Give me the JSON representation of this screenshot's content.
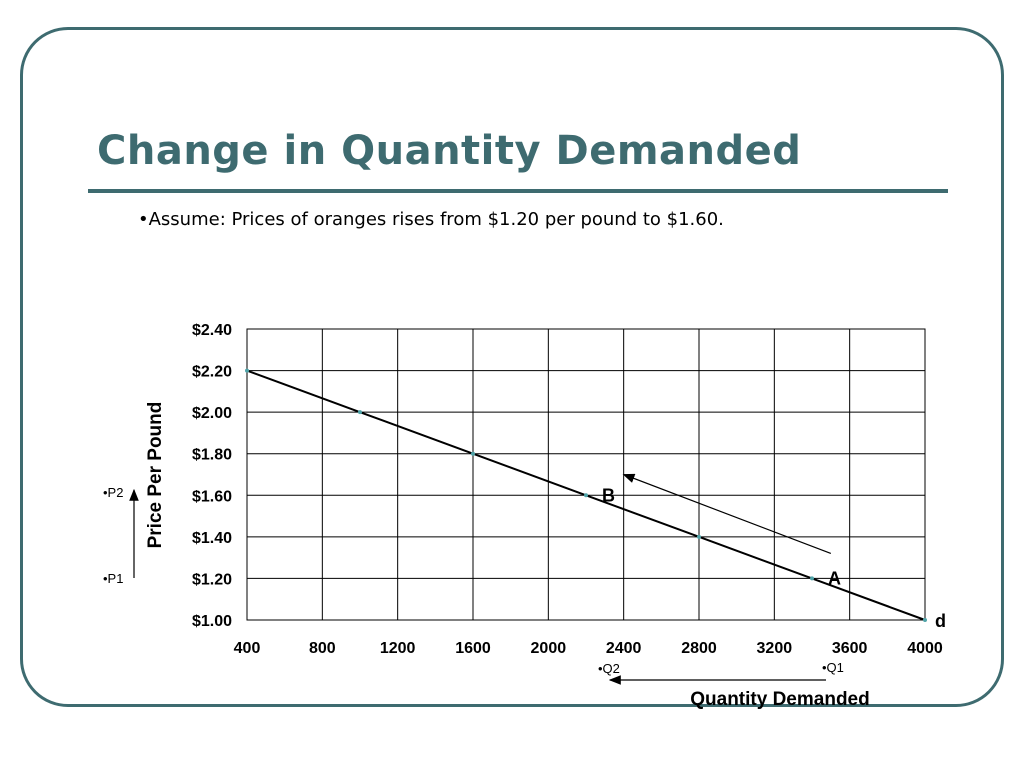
{
  "slide": {
    "title": "Change in Quantity Demanded",
    "subtitle": "•Assume: Prices of oranges rises from $1.20 per pound to $1.60."
  },
  "colors": {
    "accent": "#3e6b70",
    "line": "#000000",
    "point": "#4fa3a8"
  },
  "chart_data": {
    "type": "line",
    "title": "",
    "xlabel": "Quantity Demanded",
    "ylabel": "Price Per Pound",
    "x_ticks": [
      400,
      800,
      1200,
      1600,
      2000,
      2400,
      2800,
      3200,
      3600,
      4000
    ],
    "x_tick_labels": [
      "400",
      "800",
      "1200",
      "1600",
      "2000",
      "2400",
      "2800",
      "3200",
      "3600",
      "4000"
    ],
    "y_ticks": [
      1.0,
      1.2,
      1.4,
      1.6,
      1.8,
      2.0,
      2.2,
      2.4
    ],
    "y_tick_labels": [
      "$1.00",
      "$1.20",
      "$1.40",
      "$1.60",
      "$1.80",
      "$2.00",
      "$2.20",
      "$2.40"
    ],
    "xlim": [
      400,
      4000
    ],
    "ylim": [
      1.0,
      2.4
    ],
    "grid": true,
    "series": [
      {
        "name": "",
        "x": [
          400,
          1000,
          1600,
          2200,
          2800,
          3400,
          4000
        ],
        "y": [
          2.2,
          2.0,
          1.8,
          1.6,
          1.4,
          1.2,
          1.0
        ]
      }
    ],
    "curve_label": {
      "text": "d",
      "x": 4000,
      "y": 1.0
    },
    "annotations": [
      {
        "text": "B",
        "x": 2200,
        "y": 1.6
      },
      {
        "text": "A",
        "x": 3400,
        "y": 1.2
      }
    ],
    "movement_arrow": {
      "from": {
        "x": 3500,
        "y": 1.32
      },
      "to": {
        "x": 2400,
        "y": 1.7
      }
    },
    "price_markers": {
      "p2": "•P2",
      "p1": "•P1"
    },
    "quantity_markers": {
      "q2": "•Q2",
      "q1": "•Q1"
    }
  }
}
